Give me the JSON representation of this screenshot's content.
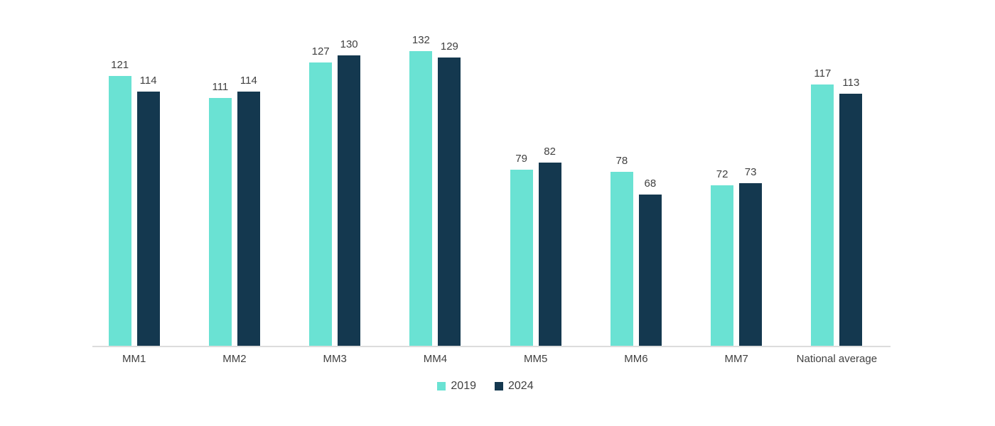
{
  "chart_data": {
    "type": "bar",
    "title": "",
    "xlabel": "",
    "ylabel": "",
    "categories": [
      "MM1",
      "MM2",
      "MM3",
      "MM4",
      "MM5",
      "MM6",
      "MM7",
      "National average"
    ],
    "series": [
      {
        "name": "2019",
        "color": "#6AE2D3",
        "values": [
          121,
          111,
          127,
          132,
          79,
          78,
          72,
          117
        ]
      },
      {
        "name": "2024",
        "color": "#14384F",
        "values": [
          114,
          114,
          130,
          129,
          82,
          68,
          73,
          113
        ]
      }
    ],
    "ylim": [
      0,
      148
    ],
    "grid": false,
    "value_labels": true,
    "legend_position": "bottom-center",
    "axis_ticks_visible": false
  },
  "colors": {
    "background": "#ffffff",
    "axis_line": "#dcdcdc",
    "label_text": "#404040"
  }
}
